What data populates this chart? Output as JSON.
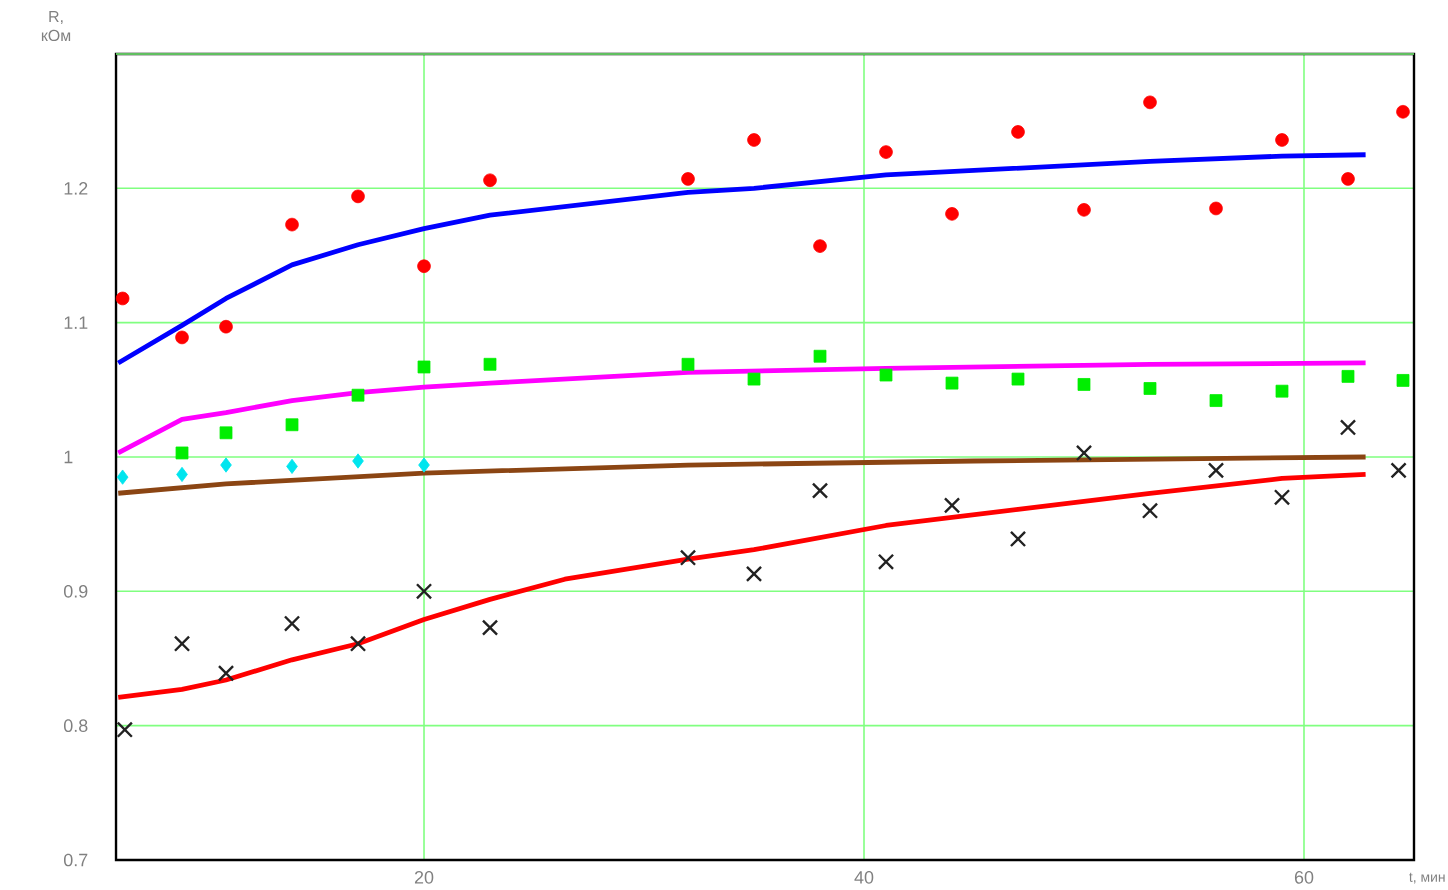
{
  "chart_data": {
    "type": "scatter",
    "xlabel": "t, мин",
    "ylabel": "R, кОм",
    "xlim": [
      6,
      65
    ],
    "ylim": [
      0.7,
      1.3
    ],
    "xticks": [
      20,
      40,
      60
    ],
    "yticks": [
      0.7,
      0.8,
      0.9,
      1,
      1.1,
      1.2
    ],
    "grid": true,
    "series": [
      {
        "marker": "circle",
        "color": "#ff0000",
        "x": [
          6.3,
          9,
          11,
          14,
          17,
          20,
          23,
          32,
          35,
          38,
          41,
          44,
          47,
          50,
          53,
          56,
          59,
          62,
          64.5
        ],
        "values": [
          1.118,
          1.089,
          1.097,
          1.173,
          1.194,
          1.142,
          1.206,
          1.207,
          1.236,
          1.157,
          1.227,
          1.181,
          1.242,
          1.184,
          1.264,
          1.185,
          1.236,
          1.207,
          1.257
        ]
      },
      {
        "marker": "square",
        "color": "#00ee00",
        "x": [
          9,
          11,
          14,
          17,
          20,
          23,
          32,
          35,
          38,
          41,
          44,
          47,
          50,
          53,
          56,
          59,
          62,
          64.5
        ],
        "values": [
          1.003,
          1.018,
          1.024,
          1.046,
          1.067,
          1.069,
          1.069,
          1.058,
          1.075,
          1.061,
          1.055,
          1.058,
          1.054,
          1.051,
          1.042,
          1.049,
          1.06,
          1.057
        ]
      },
      {
        "marker": "diamond",
        "color": "#00e5ee",
        "x": [
          6.3,
          9,
          11,
          14,
          17,
          20
        ],
        "values": [
          0.985,
          0.987,
          0.994,
          0.993,
          0.997,
          0.994
        ]
      },
      {
        "marker": "cross",
        "color": "#222222",
        "x": [
          6.4,
          9,
          11,
          14,
          17,
          20,
          23,
          32,
          35,
          38,
          41,
          44,
          47,
          50,
          53,
          56,
          59,
          62,
          64.3
        ],
        "values": [
          0.797,
          0.861,
          0.839,
          0.876,
          0.861,
          0.9,
          0.873,
          0.925,
          0.913,
          0.975,
          0.922,
          0.964,
          0.939,
          1.003,
          0.96,
          0.99,
          0.97,
          1.022,
          0.99
        ]
      },
      {
        "type": "line",
        "marker": "none",
        "color": "#0000ff",
        "x": [
          6.1,
          9,
          11,
          14,
          17,
          20,
          23,
          32,
          35,
          41,
          47,
          53,
          59,
          62.8
        ],
        "values": [
          1.07,
          1.098,
          1.118,
          1.143,
          1.158,
          1.17,
          1.18,
          1.197,
          1.2,
          1.21,
          1.215,
          1.22,
          1.224,
          1.225
        ]
      },
      {
        "type": "line",
        "marker": "none",
        "color": "#ff00ff",
        "x": [
          6.1,
          9,
          11,
          14,
          17,
          20,
          23,
          32,
          41,
          53,
          62.8
        ],
        "values": [
          1.003,
          1.028,
          1.033,
          1.042,
          1.048,
          1.052,
          1.055,
          1.063,
          1.066,
          1.069,
          1.07
        ]
      },
      {
        "type": "line",
        "marker": "none",
        "color": "#8b4513",
        "x": [
          6.1,
          11,
          20,
          32,
          45,
          62.8
        ],
        "values": [
          0.973,
          0.98,
          0.988,
          0.994,
          0.997,
          1.0
        ]
      },
      {
        "type": "line",
        "marker": "none",
        "color": "#ff0000",
        "x": [
          6.1,
          9,
          11,
          14,
          17,
          20,
          23,
          26.4,
          32,
          35,
          41,
          47,
          53,
          59,
          62.8
        ],
        "values": [
          0.821,
          0.827,
          0.834,
          0.849,
          0.861,
          0.879,
          0.894,
          0.909,
          0.924,
          0.931,
          0.949,
          0.961,
          0.973,
          0.984,
          0.987
        ]
      }
    ]
  }
}
